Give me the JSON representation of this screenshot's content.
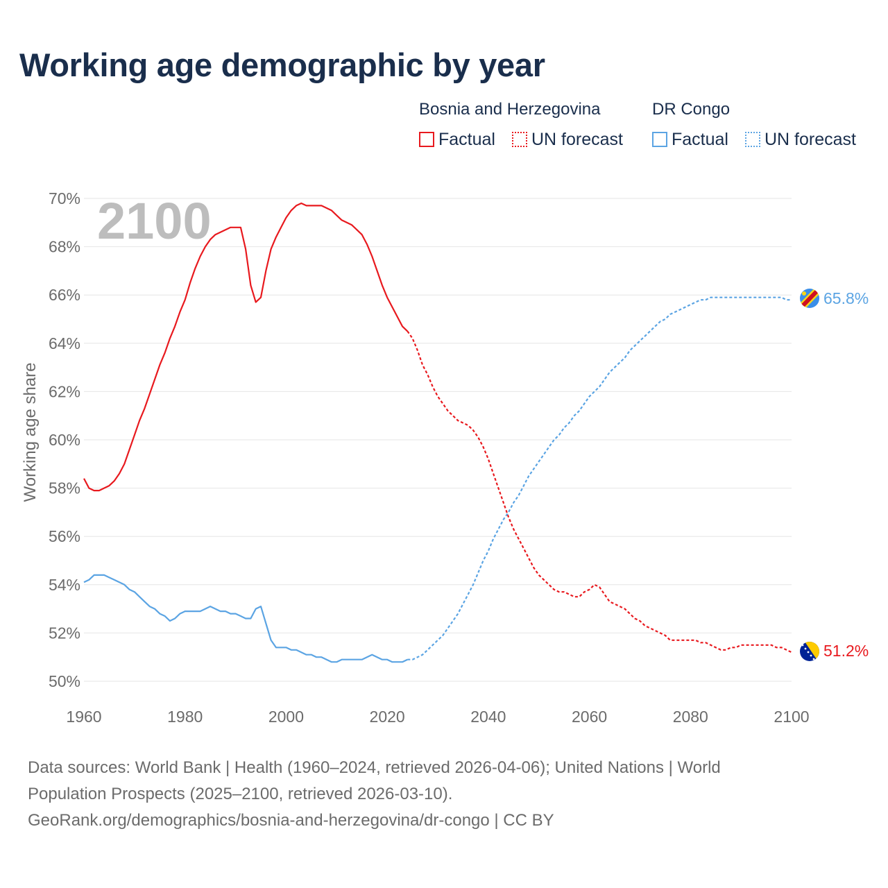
{
  "title": "Working age demographic by year",
  "legend": {
    "groups": [
      {
        "country": "Bosnia and Herzegovina",
        "factual": "Factual",
        "forecast": "UN forecast"
      },
      {
        "country": "DR Congo",
        "factual": "Factual",
        "forecast": "UN forecast"
      }
    ]
  },
  "colors": {
    "bosnia": "#e8191e",
    "drcongo": "#5ba4e3",
    "year_watermark": "#bdbdbd",
    "title": "#1a2e4c"
  },
  "chart_data": {
    "type": "line",
    "title": "Working age demographic by year",
    "year_label": "2100",
    "ylabel": "Working age share",
    "xlabel": "",
    "xlim": [
      1960,
      2100
    ],
    "ylim": [
      50,
      70
    ],
    "x_ticks": [
      "1960",
      "1980",
      "2000",
      "2020",
      "2040",
      "2060",
      "2080",
      "2100"
    ],
    "y_ticks": [
      "50%",
      "52%",
      "54%",
      "56%",
      "58%",
      "60%",
      "62%",
      "64%",
      "66%",
      "68%",
      "70%"
    ],
    "grid": true,
    "series": [
      {
        "name": "Bosnia and Herzegovina",
        "end_label": "51.2%",
        "factual": [
          [
            1960,
            58.4
          ],
          [
            1961,
            58.0
          ],
          [
            1962,
            57.9
          ],
          [
            1963,
            57.9
          ],
          [
            1964,
            58.0
          ],
          [
            1965,
            58.1
          ],
          [
            1966,
            58.3
          ],
          [
            1967,
            58.6
          ],
          [
            1968,
            59.0
          ],
          [
            1969,
            59.6
          ],
          [
            1970,
            60.2
          ],
          [
            1971,
            60.8
          ],
          [
            1972,
            61.3
          ],
          [
            1973,
            61.9
          ],
          [
            1974,
            62.5
          ],
          [
            1975,
            63.1
          ],
          [
            1976,
            63.6
          ],
          [
            1977,
            64.2
          ],
          [
            1978,
            64.7
          ],
          [
            1979,
            65.3
          ],
          [
            1980,
            65.8
          ],
          [
            1981,
            66.5
          ],
          [
            1982,
            67.1
          ],
          [
            1983,
            67.6
          ],
          [
            1984,
            68.0
          ],
          [
            1985,
            68.3
          ],
          [
            1986,
            68.5
          ],
          [
            1987,
            68.6
          ],
          [
            1988,
            68.7
          ],
          [
            1989,
            68.8
          ],
          [
            1990,
            68.8
          ],
          [
            1991,
            68.8
          ],
          [
            1992,
            67.9
          ],
          [
            1993,
            66.4
          ],
          [
            1994,
            65.7
          ],
          [
            1995,
            65.9
          ],
          [
            1996,
            67.0
          ],
          [
            1997,
            67.9
          ],
          [
            1998,
            68.4
          ],
          [
            1999,
            68.8
          ],
          [
            2000,
            69.2
          ],
          [
            2001,
            69.5
          ],
          [
            2002,
            69.7
          ],
          [
            2003,
            69.8
          ],
          [
            2004,
            69.7
          ],
          [
            2005,
            69.7
          ],
          [
            2006,
            69.7
          ],
          [
            2007,
            69.7
          ],
          [
            2008,
            69.6
          ],
          [
            2009,
            69.5
          ],
          [
            2010,
            69.3
          ],
          [
            2011,
            69.1
          ],
          [
            2012,
            69.0
          ],
          [
            2013,
            68.9
          ],
          [
            2014,
            68.7
          ],
          [
            2015,
            68.5
          ],
          [
            2016,
            68.1
          ],
          [
            2017,
            67.6
          ],
          [
            2018,
            67.0
          ],
          [
            2019,
            66.4
          ],
          [
            2020,
            65.9
          ],
          [
            2021,
            65.5
          ],
          [
            2022,
            65.1
          ],
          [
            2023,
            64.7
          ],
          [
            2024,
            64.5
          ]
        ],
        "forecast": [
          [
            2024,
            64.5
          ],
          [
            2025,
            64.2
          ],
          [
            2026,
            63.7
          ],
          [
            2027,
            63.1
          ],
          [
            2028,
            62.7
          ],
          [
            2029,
            62.2
          ],
          [
            2030,
            61.8
          ],
          [
            2031,
            61.5
          ],
          [
            2032,
            61.2
          ],
          [
            2033,
            61.0
          ],
          [
            2034,
            60.8
          ],
          [
            2035,
            60.7
          ],
          [
            2036,
            60.6
          ],
          [
            2037,
            60.4
          ],
          [
            2038,
            60.1
          ],
          [
            2039,
            59.7
          ],
          [
            2040,
            59.2
          ],
          [
            2041,
            58.6
          ],
          [
            2042,
            58.0
          ],
          [
            2043,
            57.4
          ],
          [
            2044,
            56.8
          ],
          [
            2045,
            56.3
          ],
          [
            2046,
            55.9
          ],
          [
            2047,
            55.5
          ],
          [
            2048,
            55.1
          ],
          [
            2049,
            54.7
          ],
          [
            2050,
            54.4
          ],
          [
            2051,
            54.2
          ],
          [
            2052,
            54.0
          ],
          [
            2053,
            53.8
          ],
          [
            2054,
            53.7
          ],
          [
            2055,
            53.7
          ],
          [
            2056,
            53.6
          ],
          [
            2057,
            53.5
          ],
          [
            2058,
            53.5
          ],
          [
            2059,
            53.7
          ],
          [
            2060,
            53.8
          ],
          [
            2061,
            54.0
          ],
          [
            2062,
            53.9
          ],
          [
            2063,
            53.6
          ],
          [
            2064,
            53.3
          ],
          [
            2065,
            53.2
          ],
          [
            2066,
            53.1
          ],
          [
            2067,
            53.0
          ],
          [
            2068,
            52.8
          ],
          [
            2069,
            52.6
          ],
          [
            2070,
            52.5
          ],
          [
            2071,
            52.3
          ],
          [
            2072,
            52.2
          ],
          [
            2073,
            52.1
          ],
          [
            2074,
            52.0
          ],
          [
            2075,
            51.9
          ],
          [
            2076,
            51.7
          ],
          [
            2077,
            51.7
          ],
          [
            2078,
            51.7
          ],
          [
            2079,
            51.7
          ],
          [
            2080,
            51.7
          ],
          [
            2081,
            51.7
          ],
          [
            2082,
            51.6
          ],
          [
            2083,
            51.6
          ],
          [
            2084,
            51.5
          ],
          [
            2085,
            51.4
          ],
          [
            2086,
            51.3
          ],
          [
            2087,
            51.3
          ],
          [
            2088,
            51.4
          ],
          [
            2089,
            51.4
          ],
          [
            2090,
            51.5
          ],
          [
            2091,
            51.5
          ],
          [
            2092,
            51.5
          ],
          [
            2093,
            51.5
          ],
          [
            2094,
            51.5
          ],
          [
            2095,
            51.5
          ],
          [
            2096,
            51.5
          ],
          [
            2097,
            51.4
          ],
          [
            2098,
            51.4
          ],
          [
            2099,
            51.3
          ],
          [
            2100,
            51.2
          ]
        ]
      },
      {
        "name": "DR Congo",
        "end_label": "65.8%",
        "factual": [
          [
            1960,
            54.1
          ],
          [
            1961,
            54.2
          ],
          [
            1962,
            54.4
          ],
          [
            1963,
            54.4
          ],
          [
            1964,
            54.4
          ],
          [
            1965,
            54.3
          ],
          [
            1966,
            54.2
          ],
          [
            1967,
            54.1
          ],
          [
            1968,
            54.0
          ],
          [
            1969,
            53.8
          ],
          [
            1970,
            53.7
          ],
          [
            1971,
            53.5
          ],
          [
            1972,
            53.3
          ],
          [
            1973,
            53.1
          ],
          [
            1974,
            53.0
          ],
          [
            1975,
            52.8
          ],
          [
            1976,
            52.7
          ],
          [
            1977,
            52.5
          ],
          [
            1978,
            52.6
          ],
          [
            1979,
            52.8
          ],
          [
            1980,
            52.9
          ],
          [
            1981,
            52.9
          ],
          [
            1982,
            52.9
          ],
          [
            1983,
            52.9
          ],
          [
            1984,
            53.0
          ],
          [
            1985,
            53.1
          ],
          [
            1986,
            53.0
          ],
          [
            1987,
            52.9
          ],
          [
            1988,
            52.9
          ],
          [
            1989,
            52.8
          ],
          [
            1990,
            52.8
          ],
          [
            1991,
            52.7
          ],
          [
            1992,
            52.6
          ],
          [
            1993,
            52.6
          ],
          [
            1994,
            53.0
          ],
          [
            1995,
            53.1
          ],
          [
            1996,
            52.4
          ],
          [
            1997,
            51.7
          ],
          [
            1998,
            51.4
          ],
          [
            1999,
            51.4
          ],
          [
            2000,
            51.4
          ],
          [
            2001,
            51.3
          ],
          [
            2002,
            51.3
          ],
          [
            2003,
            51.2
          ],
          [
            2004,
            51.1
          ],
          [
            2005,
            51.1
          ],
          [
            2006,
            51.0
          ],
          [
            2007,
            51.0
          ],
          [
            2008,
            50.9
          ],
          [
            2009,
            50.8
          ],
          [
            2010,
            50.8
          ],
          [
            2011,
            50.9
          ],
          [
            2012,
            50.9
          ],
          [
            2013,
            50.9
          ],
          [
            2014,
            50.9
          ],
          [
            2015,
            50.9
          ],
          [
            2016,
            51.0
          ],
          [
            2017,
            51.1
          ],
          [
            2018,
            51.0
          ],
          [
            2019,
            50.9
          ],
          [
            2020,
            50.9
          ],
          [
            2021,
            50.8
          ],
          [
            2022,
            50.8
          ],
          [
            2023,
            50.8
          ],
          [
            2024,
            50.9
          ]
        ],
        "forecast": [
          [
            2024,
            50.9
          ],
          [
            2025,
            50.9
          ],
          [
            2026,
            51.0
          ],
          [
            2027,
            51.1
          ],
          [
            2028,
            51.3
          ],
          [
            2029,
            51.5
          ],
          [
            2030,
            51.7
          ],
          [
            2031,
            51.9
          ],
          [
            2032,
            52.2
          ],
          [
            2033,
            52.5
          ],
          [
            2034,
            52.8
          ],
          [
            2035,
            53.2
          ],
          [
            2036,
            53.6
          ],
          [
            2037,
            54.0
          ],
          [
            2038,
            54.5
          ],
          [
            2039,
            55.0
          ],
          [
            2040,
            55.4
          ],
          [
            2041,
            55.9
          ],
          [
            2042,
            56.3
          ],
          [
            2043,
            56.7
          ],
          [
            2044,
            57.0
          ],
          [
            2045,
            57.4
          ],
          [
            2046,
            57.7
          ],
          [
            2047,
            58.1
          ],
          [
            2048,
            58.5
          ],
          [
            2049,
            58.8
          ],
          [
            2050,
            59.1
          ],
          [
            2051,
            59.4
          ],
          [
            2052,
            59.7
          ],
          [
            2053,
            60.0
          ],
          [
            2054,
            60.2
          ],
          [
            2055,
            60.5
          ],
          [
            2056,
            60.7
          ],
          [
            2057,
            61.0
          ],
          [
            2058,
            61.2
          ],
          [
            2059,
            61.5
          ],
          [
            2060,
            61.8
          ],
          [
            2061,
            62.0
          ],
          [
            2062,
            62.2
          ],
          [
            2063,
            62.5
          ],
          [
            2064,
            62.8
          ],
          [
            2065,
            63.0
          ],
          [
            2066,
            63.2
          ],
          [
            2067,
            63.4
          ],
          [
            2068,
            63.7
          ],
          [
            2069,
            63.9
          ],
          [
            2070,
            64.1
          ],
          [
            2071,
            64.3
          ],
          [
            2072,
            64.5
          ],
          [
            2073,
            64.7
          ],
          [
            2074,
            64.9
          ],
          [
            2075,
            65.0
          ],
          [
            2076,
            65.2
          ],
          [
            2077,
            65.3
          ],
          [
            2078,
            65.4
          ],
          [
            2079,
            65.5
          ],
          [
            2080,
            65.6
          ],
          [
            2081,
            65.7
          ],
          [
            2082,
            65.8
          ],
          [
            2083,
            65.8
          ],
          [
            2084,
            65.9
          ],
          [
            2085,
            65.9
          ],
          [
            2086,
            65.9
          ],
          [
            2087,
            65.9
          ],
          [
            2088,
            65.9
          ],
          [
            2089,
            65.9
          ],
          [
            2090,
            65.9
          ],
          [
            2091,
            65.9
          ],
          [
            2092,
            65.9
          ],
          [
            2093,
            65.9
          ],
          [
            2094,
            65.9
          ],
          [
            2095,
            65.9
          ],
          [
            2096,
            65.9
          ],
          [
            2097,
            65.9
          ],
          [
            2098,
            65.9
          ],
          [
            2099,
            65.8
          ],
          [
            2100,
            65.8
          ]
        ]
      }
    ]
  },
  "footer": {
    "line1": "Data sources: World Bank | Health (1960–2024, retrieved 2026-04-06); United Nations | World",
    "line2": "Population Prospects (2025–2100, retrieved 2026-03-10).",
    "line3": "GeoRank.org/demographics/bosnia-and-herzegovina/dr-congo | CC BY"
  }
}
